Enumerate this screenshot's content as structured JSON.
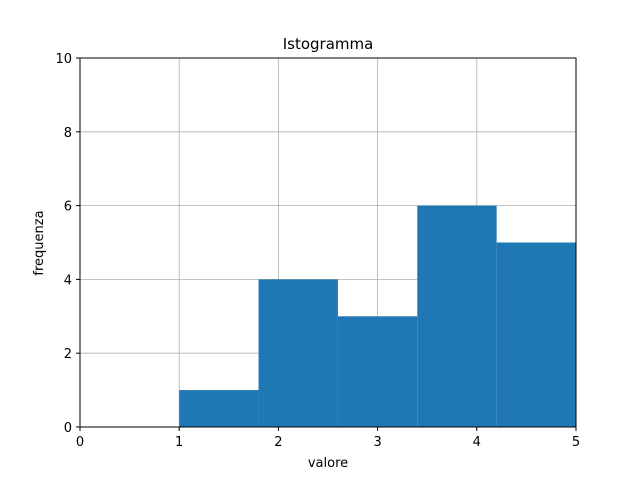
{
  "chart_data": {
    "type": "bar",
    "title": "Istogramma",
    "xlabel": "valore",
    "ylabel": "frequenza",
    "xlim": [
      0,
      5
    ],
    "ylim": [
      0,
      10
    ],
    "xticks": [
      0,
      1,
      2,
      3,
      4,
      5
    ],
    "yticks": [
      0,
      2,
      4,
      6,
      8,
      10
    ],
    "grid": true,
    "bar_color": "#1f77b4",
    "bins": [
      {
        "x0": 1.0,
        "x1": 1.8,
        "value": 1
      },
      {
        "x0": 1.8,
        "x1": 2.6,
        "value": 4
      },
      {
        "x0": 2.6,
        "x1": 3.4,
        "value": 3
      },
      {
        "x0": 3.4,
        "x1": 4.2,
        "value": 6
      },
      {
        "x0": 4.2,
        "x1": 5.0,
        "value": 5
      }
    ]
  }
}
